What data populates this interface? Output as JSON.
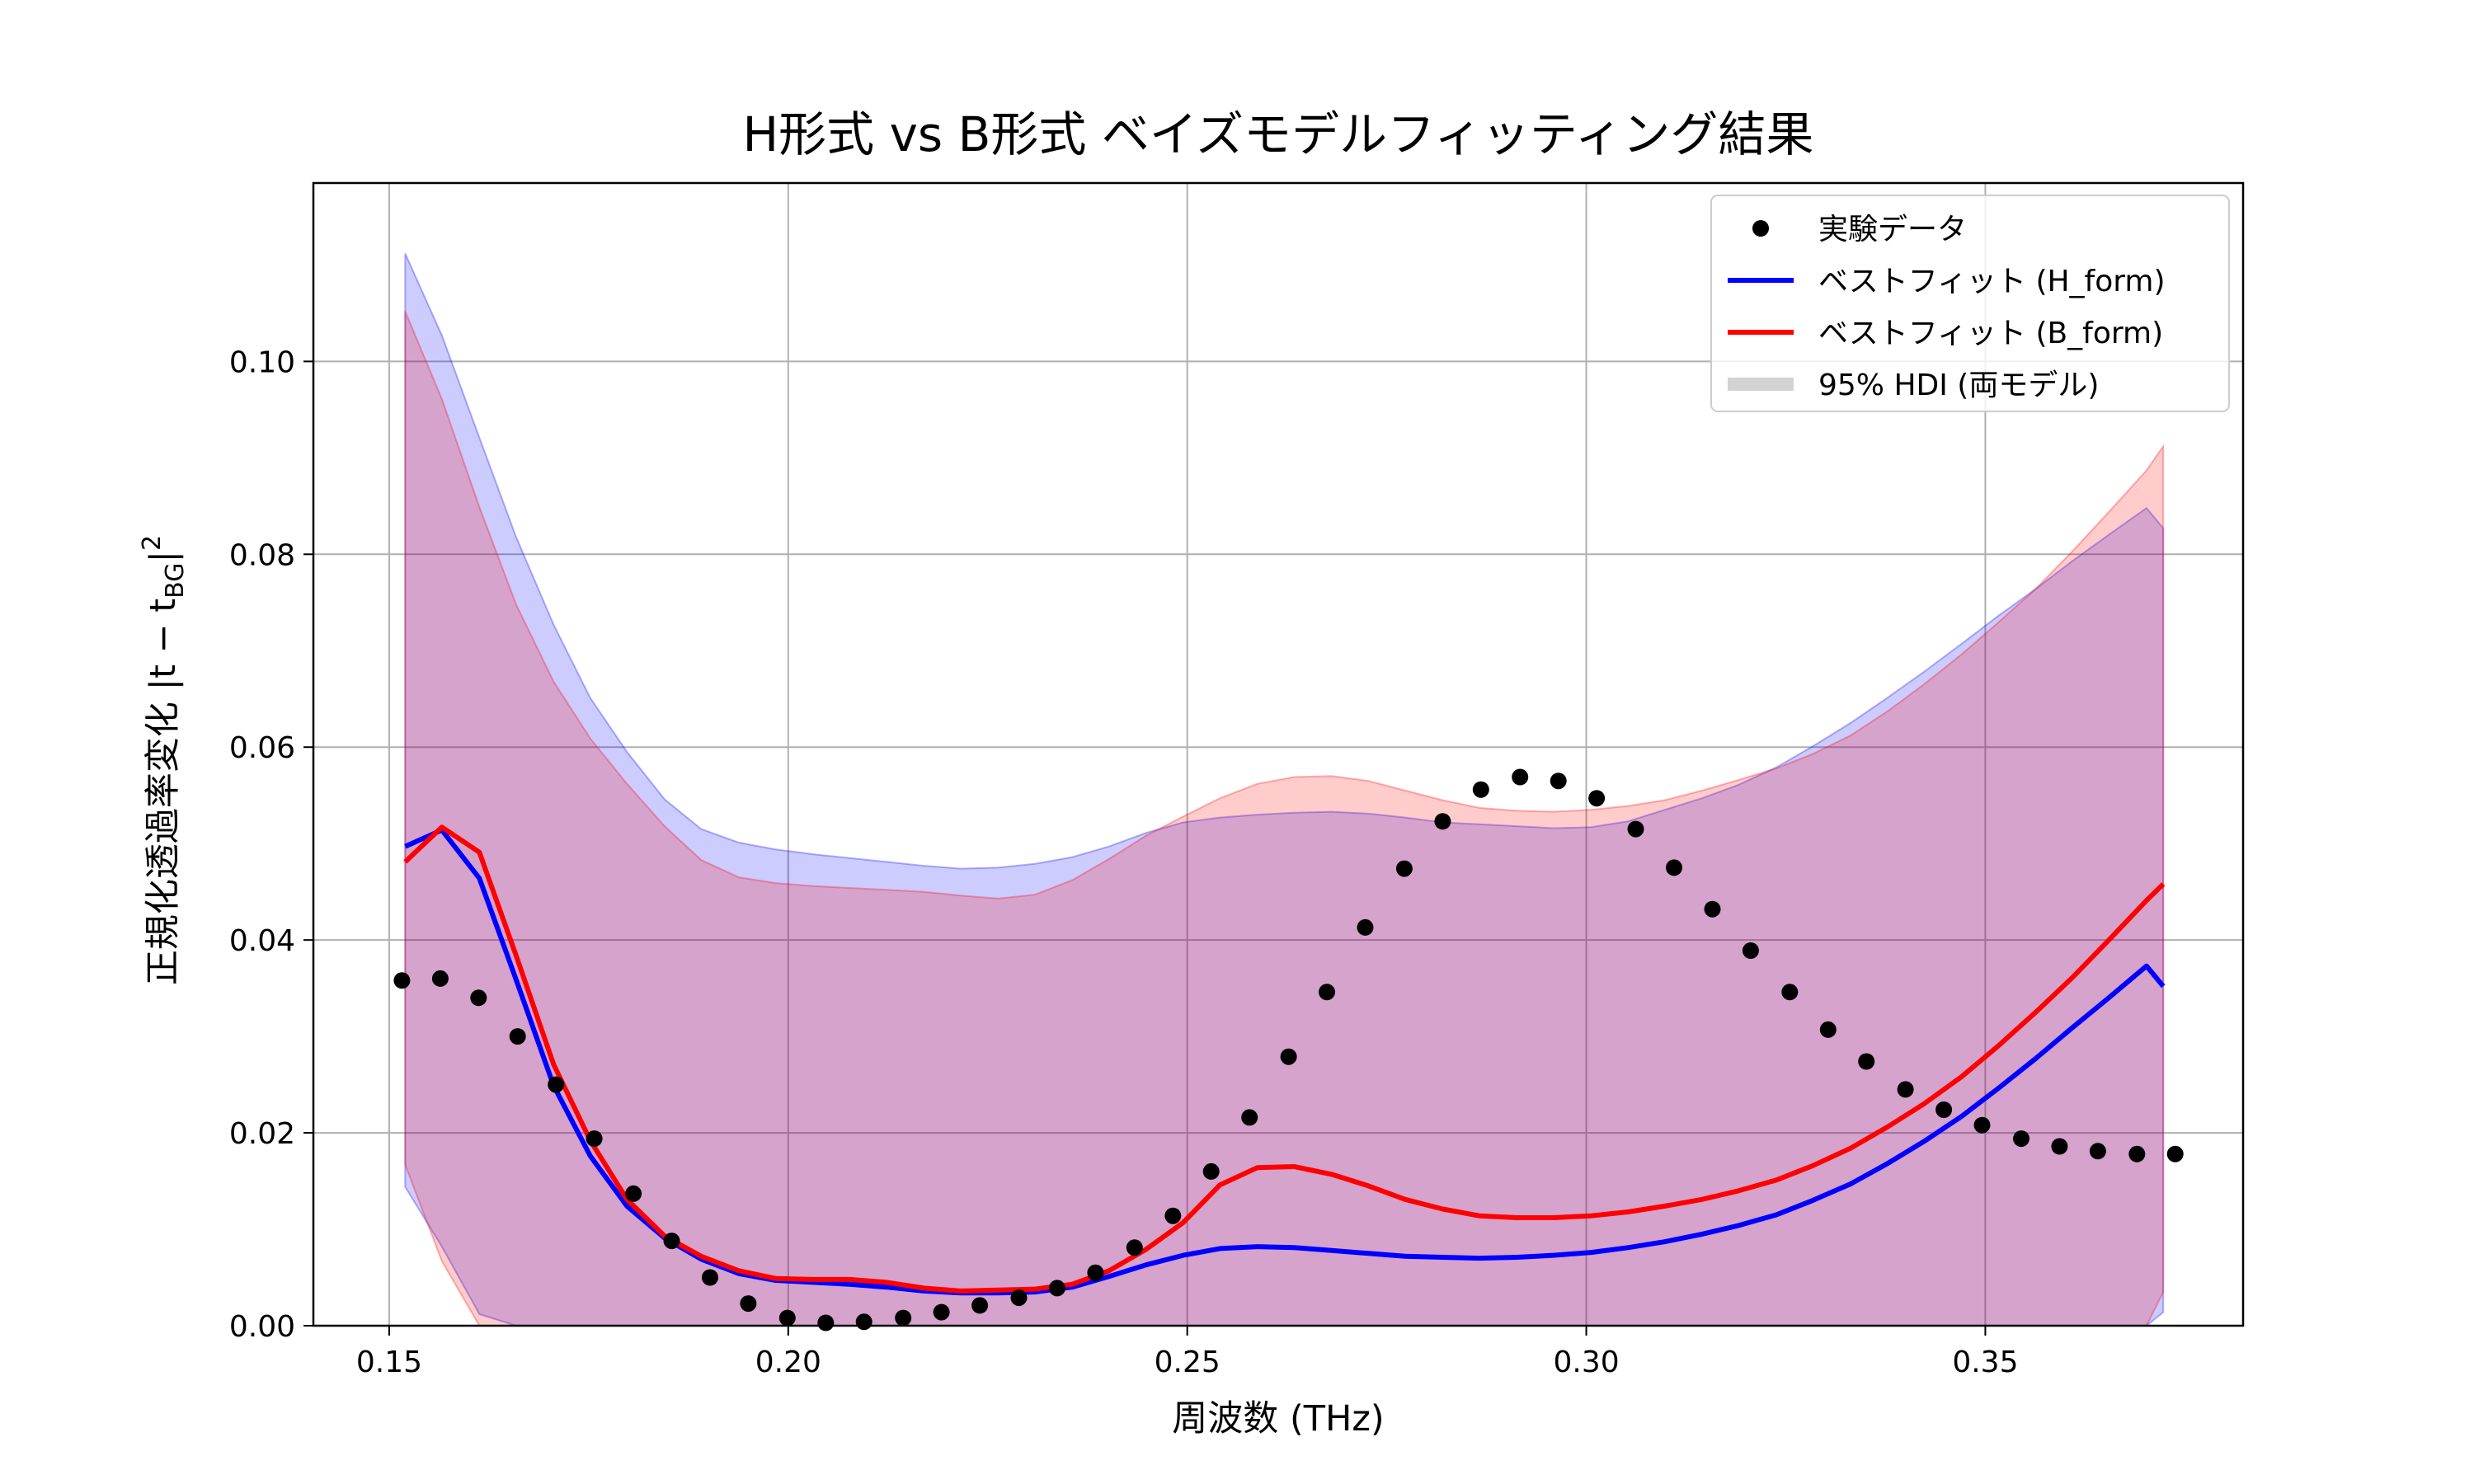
{
  "chart_data": {
    "type": "line",
    "title": "H形式 vs B形式 ベイズモデルフィッティング結果",
    "xlabel": "周波数 (THz)",
    "ylabel": "正規化透過率変化 |t − t",
    "ylabel_sub": "BG",
    "ylabel_tail": "|",
    "ylabel_sup": "2",
    "xlim": [
      0.1405,
      0.3823
    ],
    "ylim": [
      0.0,
      0.1185
    ],
    "xticks": [
      0.15,
      0.2,
      0.25,
      0.3,
      0.35
    ],
    "xtick_labels": [
      "0.15",
      "0.20",
      "0.25",
      "0.30",
      "0.35"
    ],
    "yticks": [
      0.0,
      0.02,
      0.04,
      0.06,
      0.08,
      0.1
    ],
    "ytick_labels": [
      "0.00",
      "0.02",
      "0.04",
      "0.06",
      "0.08",
      "0.10"
    ],
    "grid": true,
    "legend_position": "top-right",
    "x": [
      0.152,
      0.1566,
      0.1613,
      0.1659,
      0.1706,
      0.1752,
      0.1798,
      0.1845,
      0.1891,
      0.1938,
      0.1984,
      0.2031,
      0.2077,
      0.2123,
      0.217,
      0.2216,
      0.2263,
      0.2309,
      0.2356,
      0.2402,
      0.2448,
      0.2495,
      0.2541,
      0.2588,
      0.2634,
      0.2681,
      0.2727,
      0.2773,
      0.282,
      0.2866,
      0.2913,
      0.2959,
      0.3006,
      0.3052,
      0.3098,
      0.3145,
      0.3191,
      0.3238,
      0.3284,
      0.3331,
      0.3377,
      0.3423,
      0.347,
      0.3516,
      0.3563,
      0.3609,
      0.3656,
      0.3702,
      0.3723
    ],
    "series": [
      {
        "name": "実験データ",
        "kind": "scatter",
        "color": "#000000",
        "x": [
          0.1516,
          0.1564,
          0.1612,
          0.1661,
          0.1709,
          0.1757,
          0.1806,
          0.1854,
          0.1902,
          0.195,
          0.1999,
          0.2047,
          0.2095,
          0.2144,
          0.2192,
          0.224,
          0.2289,
          0.2337,
          0.2385,
          0.2434,
          0.2482,
          0.253,
          0.2578,
          0.2627,
          0.2675,
          0.2723,
          0.2772,
          0.282,
          0.2868,
          0.2917,
          0.2965,
          0.3013,
          0.3062,
          0.311,
          0.3158,
          0.3206,
          0.3255,
          0.3303,
          0.3351,
          0.34,
          0.3448,
          0.3496,
          0.3545,
          0.3593,
          0.3641,
          0.369,
          0.3738
        ],
        "values": [
          0.0358,
          0.036,
          0.034,
          0.03,
          0.025,
          0.0194,
          0.0137,
          0.0088,
          0.005,
          0.0023,
          0.0008,
          0.0003,
          0.0004,
          0.0008,
          0.0014,
          0.0021,
          0.0029,
          0.0039,
          0.0055,
          0.0081,
          0.0114,
          0.016,
          0.0216,
          0.0279,
          0.0346,
          0.0413,
          0.0474,
          0.0523,
          0.0556,
          0.0569,
          0.0565,
          0.0547,
          0.0515,
          0.0475,
          0.0432,
          0.0389,
          0.0346,
          0.0307,
          0.0274,
          0.0245,
          0.0224,
          0.0208,
          0.0194,
          0.0186,
          0.0181,
          0.0178,
          0.0178
        ]
      },
      {
        "name": "ベストフィット (H_form)",
        "kind": "line",
        "color": "#0000ff",
        "values": [
          0.0497,
          0.0514,
          0.0464,
          0.0359,
          0.0249,
          0.0176,
          0.0124,
          0.0091,
          0.0069,
          0.0054,
          0.0047,
          0.0045,
          0.0043,
          0.004,
          0.0036,
          0.0034,
          0.0034,
          0.0035,
          0.004,
          0.0051,
          0.0063,
          0.0073,
          0.008,
          0.0082,
          0.0081,
          0.0078,
          0.0075,
          0.0072,
          0.0071,
          0.007,
          0.0071,
          0.0073,
          0.0076,
          0.0081,
          0.0087,
          0.0095,
          0.0104,
          0.0115,
          0.013,
          0.0147,
          0.0168,
          0.0191,
          0.0217,
          0.0246,
          0.0277,
          0.0309,
          0.0341,
          0.0373,
          0.0352
        ]
      },
      {
        "name": "ベストフィット (B_form)",
        "kind": "line",
        "color": "#ff0000",
        "values": [
          0.0481,
          0.0517,
          0.0491,
          0.0384,
          0.0271,
          0.0192,
          0.0131,
          0.0093,
          0.0072,
          0.0057,
          0.0049,
          0.0048,
          0.0048,
          0.0045,
          0.0039,
          0.0036,
          0.0037,
          0.0038,
          0.0043,
          0.0057,
          0.0079,
          0.0107,
          0.0146,
          0.0164,
          0.0165,
          0.0157,
          0.0145,
          0.0131,
          0.0121,
          0.0114,
          0.0112,
          0.0112,
          0.0114,
          0.0118,
          0.0124,
          0.0131,
          0.014,
          0.0151,
          0.0166,
          0.0184,
          0.0206,
          0.023,
          0.0258,
          0.029,
          0.0325,
          0.0361,
          0.0401,
          0.0441,
          0.0458
        ]
      }
    ],
    "bands": [
      {
        "name": "95% HDI (H_form)",
        "color": "#0000ff",
        "opacity": 0.2,
        "upper": [
          0.1112,
          0.1027,
          0.0921,
          0.0818,
          0.0727,
          0.0651,
          0.0595,
          0.0546,
          0.0515,
          0.0501,
          0.0494,
          0.0489,
          0.0485,
          0.0481,
          0.0477,
          0.0474,
          0.0475,
          0.0479,
          0.0486,
          0.0497,
          0.0511,
          0.0522,
          0.0527,
          0.053,
          0.0532,
          0.0533,
          0.0531,
          0.0527,
          0.0522,
          0.052,
          0.0518,
          0.0516,
          0.0517,
          0.0523,
          0.0535,
          0.0547,
          0.0561,
          0.0579,
          0.0601,
          0.0625,
          0.0651,
          0.0678,
          0.0707,
          0.0736,
          0.0764,
          0.0793,
          0.0821,
          0.0848,
          0.0827
        ],
        "lower": [
          0.0144,
          0.0082,
          0.0012,
          0.0,
          0.0,
          0.0,
          0.0,
          0.0,
          0.0,
          0.0,
          0.0,
          0.0,
          0.0,
          0.0,
          0.0,
          0.0,
          0.0,
          0.0,
          0.0,
          0.0,
          0.0,
          0.0,
          0.0,
          0.0,
          0.0,
          0.0,
          0.0,
          0.0,
          0.0,
          0.0,
          0.0,
          0.0,
          0.0,
          0.0,
          0.0,
          0.0,
          0.0,
          0.0,
          0.0,
          0.0,
          0.0,
          0.0,
          0.0,
          0.0,
          0.0,
          0.0,
          0.0,
          0.0,
          0.0014
        ]
      },
      {
        "name": "95% HDI (B_form)",
        "color": "#ff0000",
        "opacity": 0.2,
        "upper": [
          0.1052,
          0.0961,
          0.0849,
          0.0748,
          0.0668,
          0.0609,
          0.0562,
          0.0518,
          0.0483,
          0.0465,
          0.0459,
          0.0456,
          0.0454,
          0.0452,
          0.045,
          0.0446,
          0.0443,
          0.0447,
          0.0462,
          0.0484,
          0.0508,
          0.0528,
          0.0547,
          0.0562,
          0.0569,
          0.057,
          0.0565,
          0.0555,
          0.0545,
          0.0537,
          0.0534,
          0.0533,
          0.0535,
          0.0539,
          0.0545,
          0.0555,
          0.0566,
          0.0578,
          0.0593,
          0.0612,
          0.0637,
          0.0665,
          0.0696,
          0.0729,
          0.0764,
          0.0803,
          0.0845,
          0.0887,
          0.0912
        ],
        "lower": [
          0.0167,
          0.0067,
          0.0,
          0.0,
          0.0,
          0.0,
          0.0,
          0.0,
          0.0,
          0.0,
          0.0,
          0.0,
          0.0,
          0.0,
          0.0,
          0.0,
          0.0,
          0.0,
          0.0,
          0.0,
          0.0,
          0.0,
          0.0,
          0.0,
          0.0,
          0.0,
          0.0,
          0.0,
          0.0,
          0.0,
          0.0,
          0.0,
          0.0,
          0.0,
          0.0,
          0.0,
          0.0,
          0.0,
          0.0,
          0.0,
          0.0,
          0.0,
          0.0,
          0.0,
          0.0,
          0.0,
          0.0,
          0.0,
          0.0035
        ]
      }
    ],
    "legend": [
      {
        "label": "実験データ",
        "marker": "dot",
        "color": "#000000"
      },
      {
        "label": "ベストフィット (H_form)",
        "marker": "line",
        "color": "#0000ff"
      },
      {
        "label": "ベストフィット (B_form)",
        "marker": "line",
        "color": "#ff0000"
      },
      {
        "label": "95% HDI (両モデル)",
        "marker": "patch",
        "color": "#d3d3d3"
      }
    ]
  }
}
